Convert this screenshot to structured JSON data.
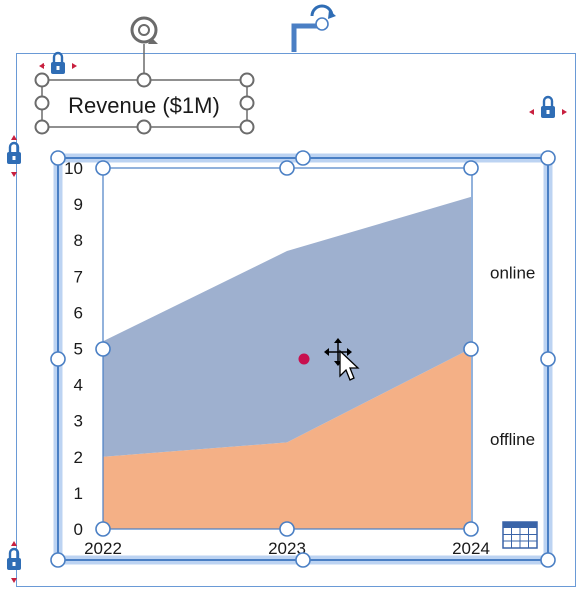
{
  "chart_data": {
    "type": "area",
    "stacked": true,
    "title": "Revenue ($1M)",
    "x": [
      "2022",
      "2023",
      "2024"
    ],
    "series": [
      {
        "name": "offline",
        "values": [
          2.0,
          2.4,
          5.0
        ],
        "color": "#f4b086"
      },
      {
        "name": "online",
        "values": [
          3.2,
          5.3,
          4.2
        ],
        "color": "#9eb0cf"
      }
    ],
    "yticks": [
      "0",
      "1",
      "2",
      "3",
      "4",
      "5",
      "6",
      "7",
      "8",
      "9",
      "10"
    ],
    "ylim": [
      0,
      10
    ],
    "grid": false,
    "legend": "inline-right"
  },
  "ui": {
    "selection_color": "#4a7fc4",
    "anchor_dot_color": "#c8104f",
    "icons": [
      "rotate-icon",
      "lock-icon",
      "move-cursor-icon",
      "table-icon"
    ]
  }
}
